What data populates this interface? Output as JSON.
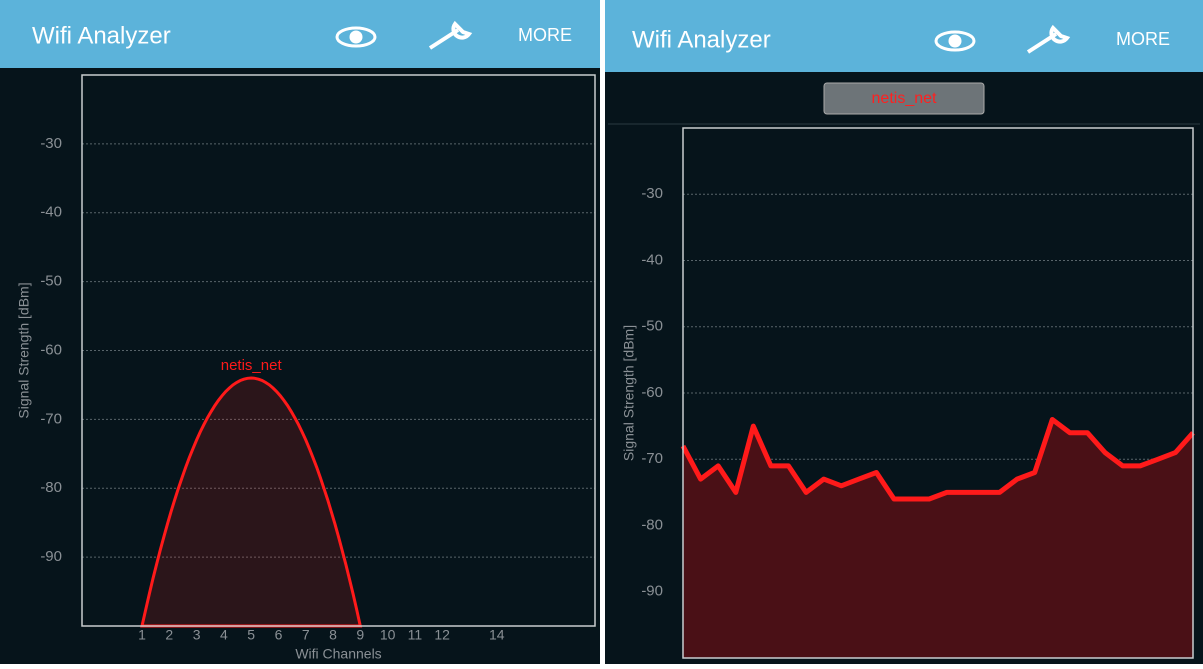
{
  "app_bars": [
    {
      "title": "Wifi Analyzer",
      "menu": "MORE"
    },
    {
      "title": "Wifi Analyzer",
      "menu": "MORE"
    }
  ],
  "selector": "netis_net",
  "chart_data": [
    {
      "type": "spectrum",
      "ylabel": "Signal Strength [dBm]",
      "xlabel": "Wifi Channels",
      "ylim": [
        -100,
        -20
      ],
      "yticks": [
        -30,
        -40,
        -50,
        -60,
        -70,
        -80,
        -90
      ],
      "xlim": [
        -1.2,
        17.6
      ],
      "xticks": [
        1,
        2,
        3,
        4,
        5,
        6,
        7,
        8,
        9,
        10,
        11,
        12,
        14
      ],
      "grid": true,
      "series": [
        {
          "name": "netis_net",
          "color": "#ff1a1a",
          "channel": 5,
          "values": [
            -64
          ]
        }
      ]
    },
    {
      "type": "line",
      "ylabel": "Signal Strength [dBm]",
      "ylim": [
        -100,
        -20
      ],
      "yticks": [
        -30,
        -40,
        -50,
        -60,
        -70,
        -80,
        -90
      ],
      "grid": true,
      "series": [
        {
          "name": "netis_net",
          "color": "#ff1a1a",
          "values": [
            -68,
            -73,
            -71,
            -75,
            -65,
            -71,
            -71,
            -75,
            -73,
            -74,
            -73,
            -72,
            -76,
            -76,
            -76,
            -75,
            -75,
            -75,
            -75,
            -73,
            -72,
            -64,
            -66,
            -66,
            -69,
            -71,
            -71,
            -70,
            -69,
            -66
          ]
        }
      ]
    }
  ]
}
